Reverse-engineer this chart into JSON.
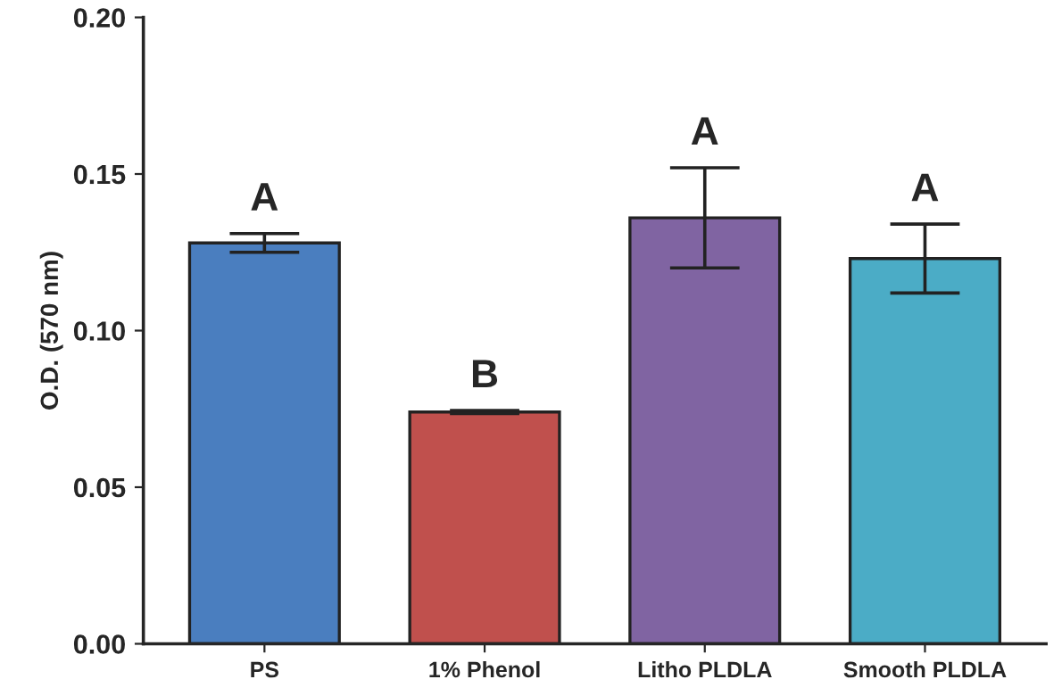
{
  "chart_data": {
    "type": "bar",
    "ylabel": "O.D. (570 nm)",
    "categories": [
      "PS",
      "1% Phenol",
      "Litho PLDLA",
      "Smooth PLDLA"
    ],
    "values": [
      0.128,
      0.074,
      0.136,
      0.123
    ],
    "errors": [
      0.003,
      0.0005,
      0.016,
      0.011
    ],
    "colors": [
      "#4a7ebf",
      "#c0504d",
      "#8064a2",
      "#4bacc6"
    ],
    "ylim": [
      0,
      0.2
    ],
    "yticks": [
      {
        "value": 0,
        "label": "0.00"
      },
      {
        "value": 0.05,
        "label": "0.05"
      },
      {
        "value": 0.1,
        "label": "0.10"
      },
      {
        "value": 0.15,
        "label": "0.15"
      },
      {
        "value": 0.2,
        "label": "0.20"
      }
    ],
    "grid": false,
    "annotations": [
      "A",
      "B",
      "A",
      "A"
    ]
  }
}
